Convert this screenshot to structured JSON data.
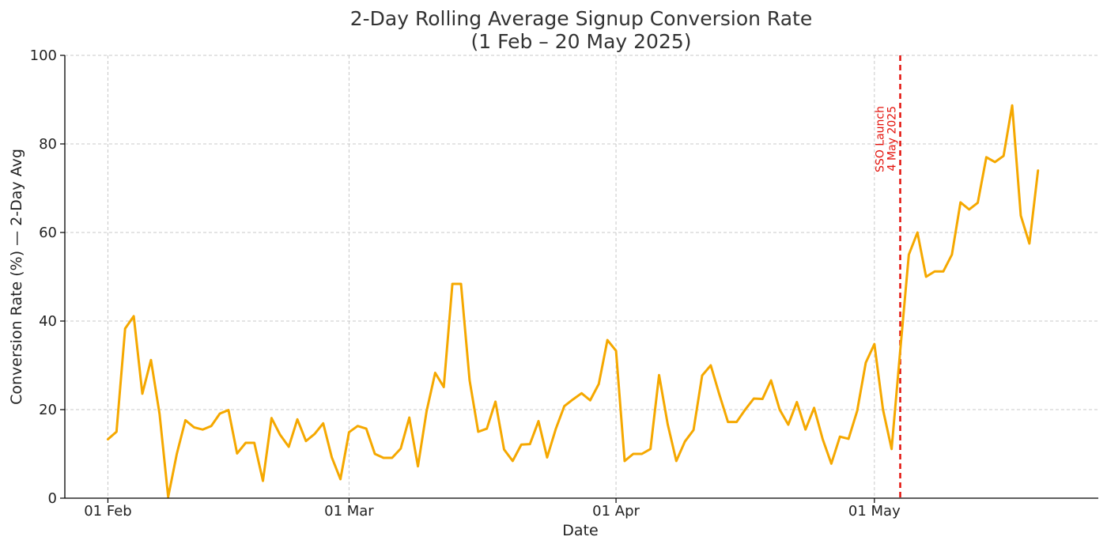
{
  "chart_data": {
    "type": "line",
    "title_line1": "2-Day Rolling Average Signup Conversion Rate",
    "title_line2": "(1 Feb – 20 May 2025)",
    "xlabel": "Date",
    "ylabel": "Conversion Rate (%) — 2-Day Avg",
    "ylim": [
      0,
      100
    ],
    "yticks": [
      0,
      20,
      40,
      60,
      80,
      100
    ],
    "xlim": [
      "2025-01-27",
      "2025-05-27"
    ],
    "xticks": [
      {
        "date": "2025-02-01",
        "label": "01 Feb"
      },
      {
        "date": "2025-03-01",
        "label": "01 Mar"
      },
      {
        "date": "2025-04-01",
        "label": "01 Apr"
      },
      {
        "date": "2025-05-01",
        "label": "01 May"
      }
    ],
    "grid": true,
    "line_color": "#f5a800",
    "series": [
      {
        "x_start": "2025-02-01",
        "x_step_days": 1,
        "values": [
          13.3,
          15.0,
          38.3,
          41.1,
          23.6,
          31.2,
          19.0,
          0.3,
          10.0,
          17.6,
          16.0,
          15.5,
          16.3,
          19.1,
          19.9,
          10.1,
          12.5,
          12.5,
          3.9,
          18.1,
          14.3,
          11.6,
          17.8,
          12.9,
          14.5,
          16.9,
          9.2,
          4.3,
          14.9,
          16.3,
          15.7,
          10.0,
          9.1,
          9.1,
          11.2,
          18.2,
          7.2,
          19.6,
          28.3,
          25.1,
          48.4,
          48.4,
          26.6,
          15.0,
          15.7,
          21.8,
          11.0,
          8.4,
          12.1,
          12.2,
          17.4,
          9.2,
          15.6,
          20.8,
          22.3,
          23.7,
          22.1,
          25.8,
          35.7,
          33.3,
          8.4,
          10.0,
          10.0,
          11.1,
          27.8,
          16.7,
          8.4,
          12.8,
          15.4,
          27.7,
          30.0,
          23.4,
          17.2,
          17.2,
          20.0,
          22.5,
          22.4,
          26.6,
          20.0,
          16.6,
          21.7,
          15.5,
          20.4,
          13.3,
          7.8,
          13.9,
          13.4,
          19.7,
          30.6,
          34.8,
          20.0,
          11.1,
          33.3,
          55.0,
          60.0,
          50.0,
          51.2,
          51.2,
          55.0,
          66.8,
          65.2,
          66.7,
          77.0,
          75.9,
          77.3,
          88.7,
          63.8,
          57.5,
          74.0
        ]
      }
    ],
    "annotation": {
      "date": "2025-05-04",
      "line1": "SSO Launch",
      "line2": "4 May 2025",
      "color": "#e3120b"
    }
  }
}
